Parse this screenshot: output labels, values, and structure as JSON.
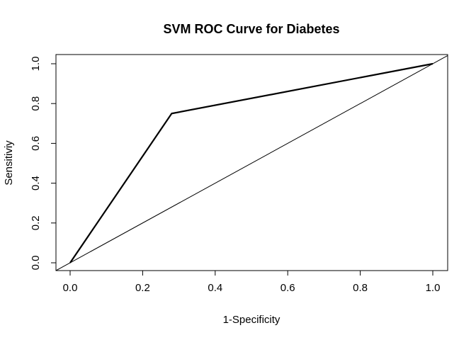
{
  "chart_data": {
    "type": "line",
    "title": "SVM ROC Curve for Diabetes",
    "xlabel": "1-Specificity",
    "ylabel": "Sensitiviy",
    "xlim": [
      0,
      1
    ],
    "ylim": [
      0,
      1
    ],
    "x_ticks": [
      "0.0",
      "0.2",
      "0.4",
      "0.6",
      "0.8",
      "1.0"
    ],
    "y_ticks": [
      "0.0",
      "0.2",
      "0.4",
      "0.6",
      "0.8",
      "1.0"
    ],
    "grid": false,
    "series": [
      {
        "x": [
          0,
          0.28,
          1
        ],
        "y": [
          0,
          0.75,
          1
        ],
        "color": "#000000"
      }
    ],
    "reference_line": {
      "intercept": 0,
      "slope": 1,
      "color": "#000000"
    }
  }
}
